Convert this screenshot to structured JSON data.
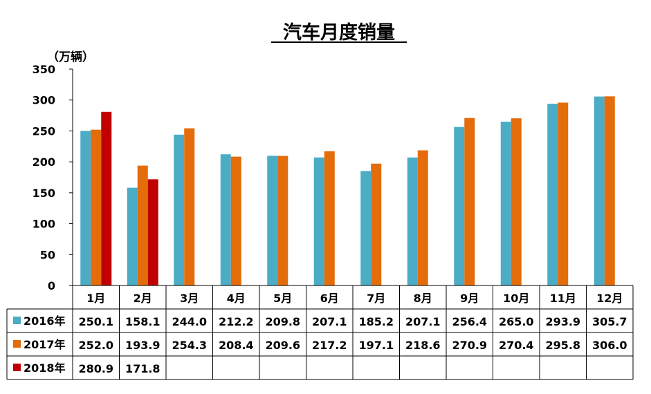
{
  "chart_data": {
    "type": "bar",
    "title": "汽车月度销量",
    "unit_label": "（万辆）",
    "ylim": [
      0,
      350
    ],
    "yticks": [
      "0",
      "50",
      "100",
      "150",
      "200",
      "250",
      "300",
      "350"
    ],
    "categories": [
      "1月",
      "2月",
      "3月",
      "4月",
      "5月",
      "6月",
      "7月",
      "8月",
      "9月",
      "10月",
      "11月",
      "12月"
    ],
    "series": [
      {
        "name": "2016年",
        "color": "#4BACC6",
        "values": [
          250.1,
          158.1,
          244.0,
          212.2,
          209.8,
          207.1,
          185.2,
          207.1,
          256.4,
          265.0,
          293.9,
          305.7
        ],
        "labels": [
          "250.1",
          "158.1",
          "244.0",
          "212.2",
          "209.8",
          "207.1",
          "185.2",
          "207.1",
          "256.4",
          "265.0",
          "293.9",
          "305.7"
        ]
      },
      {
        "name": "2017年",
        "color": "#E46C0A",
        "values": [
          252.0,
          193.9,
          254.3,
          208.4,
          209.6,
          217.2,
          197.1,
          218.6,
          270.9,
          270.4,
          295.8,
          306.0
        ],
        "labels": [
          "252.0",
          "193.9",
          "254.3",
          "208.4",
          "209.6",
          "217.2",
          "197.1",
          "218.6",
          "270.9",
          "270.4",
          "295.8",
          "306.0"
        ]
      },
      {
        "name": "2018年",
        "color": "#C00000",
        "values": [
          280.9,
          171.8,
          null,
          null,
          null,
          null,
          null,
          null,
          null,
          null,
          null,
          null
        ],
        "labels": [
          "280.9",
          "171.8",
          "",
          "",
          "",
          "",
          "",
          "",
          "",
          "",
          "",
          ""
        ]
      }
    ],
    "legend_placement": "table-rows",
    "grid": false
  }
}
